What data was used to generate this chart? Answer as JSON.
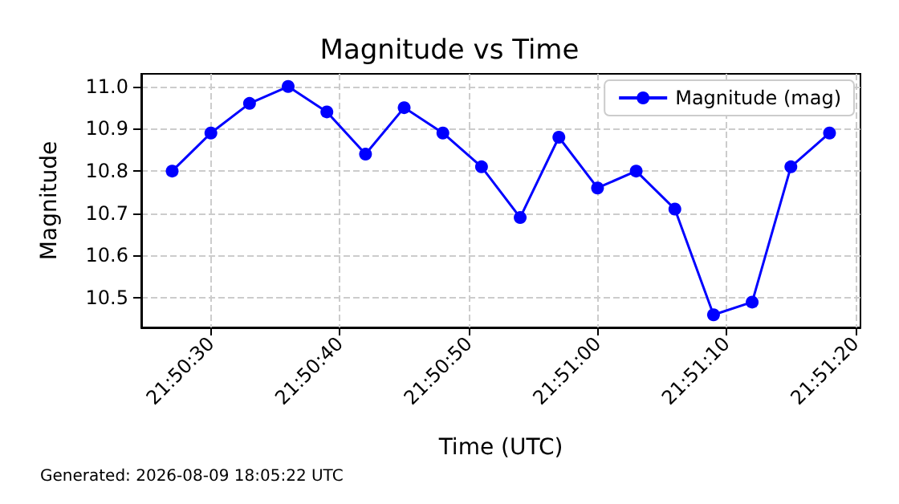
{
  "chart_data": {
    "type": "line",
    "title": "Magnitude vs Time",
    "xlabel": "Time (UTC)",
    "ylabel": "Magnitude",
    "annotations": [
      "Generated: 2026-08-09 18:05:22 UTC"
    ],
    "x": [
      21.840833,
      21.841667,
      21.8425,
      21.843333,
      21.844167,
      21.845,
      21.845833,
      21.846667,
      21.8475,
      21.848333,
      21.849167,
      21.85,
      21.850833,
      21.851667,
      21.8525,
      21.853333,
      21.854167,
      21.855
    ],
    "series": [
      {
        "name": "Magnitude (mag)",
        "color": "#0000ff",
        "values": [
          10.8,
          10.89,
          10.96,
          11.0,
          10.94,
          10.84,
          10.95,
          10.89,
          10.81,
          10.69,
          10.88,
          10.76,
          10.8,
          10.71,
          10.46,
          10.49,
          10.81,
          10.89
        ]
      }
    ],
    "xlim": [
      21.840167,
      21.855667
    ],
    "xticks": [
      {
        "value": 21.841667,
        "label": "21:50:30"
      },
      {
        "value": 21.844444,
        "label": "21:50:40"
      },
      {
        "value": 21.847222,
        "label": "21:50:50"
      },
      {
        "value": 21.85,
        "label": "21:51:00"
      },
      {
        "value": 21.852778,
        "label": "21:51:10"
      },
      {
        "value": 21.855556,
        "label": "21:51:20"
      }
    ],
    "ylim": [
      10.43,
      11.03
    ],
    "yticks": [
      {
        "value": 10.5,
        "label": "10.5"
      },
      {
        "value": 10.6,
        "label": "10.6"
      },
      {
        "value": 10.7,
        "label": "10.7"
      },
      {
        "value": 10.8,
        "label": "10.8"
      },
      {
        "value": 10.9,
        "label": "10.9"
      },
      {
        "value": 11.0,
        "label": "11.0"
      }
    ],
    "grid": true,
    "legend": "top right",
    "marker": "circle",
    "line_style": "solid"
  }
}
